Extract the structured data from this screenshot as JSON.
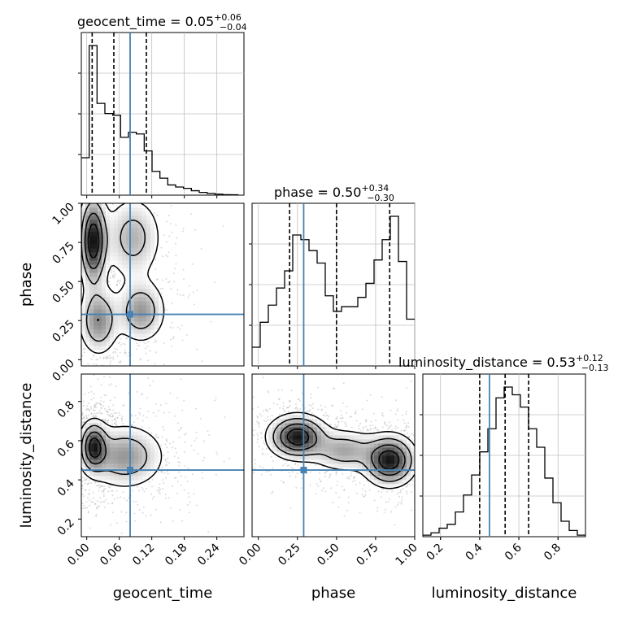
{
  "chart_data": {
    "type": "corner",
    "parameters": [
      "geocent_time",
      "phase",
      "luminosity_distance"
    ],
    "truths": {
      "geocent_time": 0.08,
      "phase": 0.29,
      "luminosity_distance": 0.45
    },
    "ranges": {
      "geocent_time": [
        -0.01,
        0.29
      ],
      "phase": [
        -0.04,
        1.0
      ],
      "luminosity_distance": [
        0.11,
        0.94
      ]
    },
    "ticks": {
      "geocent_time": [
        "0.00",
        "0.06",
        "0.12",
        "0.18",
        "0.24"
      ],
      "phase": [
        "0.00",
        "0.25",
        "0.50",
        "0.75",
        "1.00"
      ],
      "luminosity_distance": [
        "0.2",
        "0.4",
        "0.6",
        "0.8"
      ],
      "luminosity_distance_y": [
        "0.2",
        "0.4",
        "0.6",
        "0.8"
      ]
    },
    "titles": [
      {
        "param": "geocent_time",
        "label": "geocent_time = 0.05",
        "plus": "+0.06",
        "minus": "−0.04"
      },
      {
        "param": "phase",
        "label": "phase = 0.50",
        "plus": "+0.34",
        "minus": "−0.30"
      },
      {
        "param": "luminosity_distance",
        "label": "luminosity_distance = 0.53",
        "plus": "+0.12",
        "minus": "−0.13"
      }
    ],
    "quantiles": {
      "geocent_time": [
        0.01,
        0.05,
        0.11
      ],
      "phase": [
        0.2,
        0.5,
        0.84
      ],
      "luminosity_distance": [
        0.4,
        0.53,
        0.65
      ]
    },
    "histograms": {
      "geocent_time": {
        "edges_start": -0.01,
        "bin_width": 0.0145,
        "counts": [
          0.22,
          0.88,
          0.54,
          0.48,
          0.47,
          0.34,
          0.37,
          0.36,
          0.26,
          0.14,
          0.1,
          0.06,
          0.048,
          0.04,
          0.026,
          0.016,
          0.01,
          0.006,
          0.003,
          0.002
        ]
      },
      "phase": {
        "edges_start": -0.04,
        "bin_width": 0.052,
        "counts": [
          0.12,
          0.28,
          0.39,
          0.5,
          0.61,
          0.84,
          0.81,
          0.74,
          0.66,
          0.45,
          0.35,
          0.38,
          0.38,
          0.44,
          0.53,
          0.68,
          0.81,
          0.96,
          0.67,
          0.3
        ]
      },
      "luminosity_distance": {
        "edges_start": 0.11,
        "bin_width": 0.0415,
        "counts": [
          0.01,
          0.025,
          0.055,
          0.08,
          0.16,
          0.27,
          0.4,
          0.55,
          0.7,
          0.9,
          0.97,
          0.92,
          0.84,
          0.7,
          0.58,
          0.38,
          0.22,
          0.1,
          0.04,
          0.01
        ]
      }
    },
    "contours_2d": {
      "phase_vs_geocent_time": {
        "modes": [
          {
            "x": 0.012,
            "y": 0.76,
            "sx": 0.014,
            "sy": 0.16,
            "w": 1.0
          },
          {
            "x": 0.022,
            "y": 0.25,
            "sx": 0.02,
            "sy": 0.12,
            "w": 0.55
          },
          {
            "x": 0.1,
            "y": 0.31,
            "sx": 0.025,
            "sy": 0.11,
            "w": 0.5
          },
          {
            "x": 0.085,
            "y": 0.78,
            "sx": 0.03,
            "sy": 0.15,
            "w": 0.4
          }
        ]
      },
      "luminosity_distance_vs_geocent_time": {
        "modes": [
          {
            "x": 0.013,
            "y": 0.57,
            "sx": 0.014,
            "sy": 0.07,
            "w": 1.0
          },
          {
            "x": 0.07,
            "y": 0.52,
            "sx": 0.04,
            "sy": 0.09,
            "w": 0.6
          }
        ]
      },
      "luminosity_distance_vs_phase": {
        "modes": [
          {
            "x": 0.25,
            "y": 0.62,
            "sx": 0.1,
            "sy": 0.06,
            "w": 1.0
          },
          {
            "x": 0.84,
            "y": 0.5,
            "sx": 0.09,
            "sy": 0.07,
            "w": 1.0
          },
          {
            "x": 0.55,
            "y": 0.55,
            "sx": 0.12,
            "sy": 0.06,
            "w": 0.45
          }
        ]
      }
    },
    "axis_labels": {
      "x": [
        "geocent_time",
        "phase",
        "luminosity_distance"
      ],
      "y": [
        "phase",
        "luminosity_distance"
      ]
    },
    "colors": {
      "truth": "#4682b4",
      "hist": "#000000",
      "grid": "#c0c0c0",
      "scatter": "#b0b0b0"
    }
  }
}
